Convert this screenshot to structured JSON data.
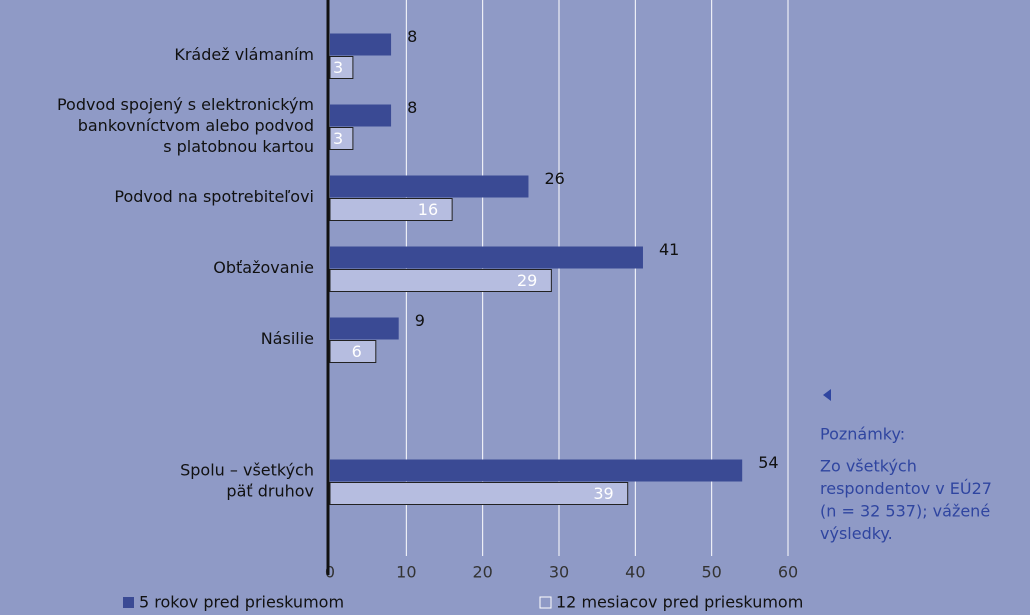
{
  "chart_data": {
    "type": "hbar",
    "categories": [
      [
        "Krádež vlámaním"
      ],
      [
        "Podvod spojený s elektronickým",
        "bankovníctvom alebo podvod",
        "s platobnou kartou"
      ],
      [
        "Podvod na spotrebiteľovi"
      ],
      [
        "Obťažovanie"
      ],
      [
        "Násilie"
      ],
      null,
      [
        "Spolu – všetkých",
        "päť druhov"
      ]
    ],
    "series": [
      {
        "name": "5 rokov pred prieskumom",
        "color": "#3a4a94",
        "values": [
          8,
          8,
          26,
          41,
          9,
          null,
          54
        ]
      },
      {
        "name": "12 mesiacov pred prieskumom",
        "color": "#b6bde0",
        "values": [
          3,
          3,
          16,
          29,
          6,
          null,
          39
        ]
      }
    ],
    "xlim": [
      0,
      60
    ],
    "xticks": [
      0,
      10,
      20,
      30,
      40,
      50,
      60
    ],
    "grid": true,
    "notes": {
      "title": "Poznámky:",
      "lines": [
        "Zo všetkých",
        "respondentov v EÚ27",
        "(n = 32 537); vážené",
        "výsledky."
      ]
    }
  }
}
